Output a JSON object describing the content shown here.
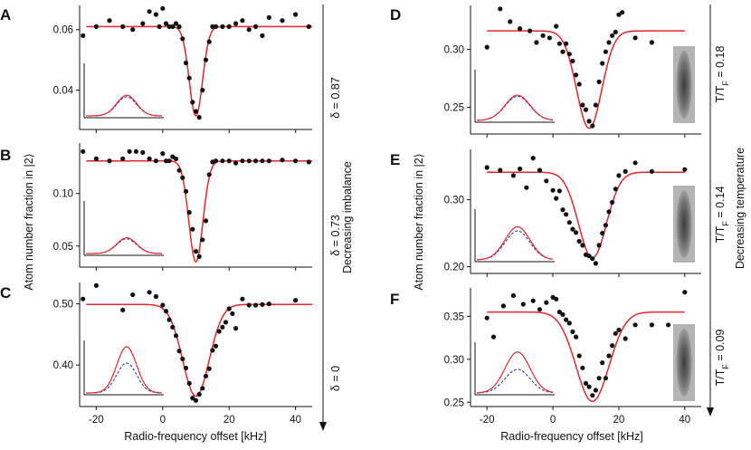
{
  "colors": {
    "fit": "#e8262a",
    "dots": "#111111",
    "inset_red": "#e8262a",
    "inset_blue": "#3a3aa0",
    "axis": "#111111"
  },
  "shared": {
    "xlabel": "Radio-frequency offset [kHz]",
    "ylabel": "Atom number fraction in |2⟩",
    "left_arrow_label": "Decreasing imbalance",
    "right_arrow_label": "Decreasing temperature"
  },
  "chart_data": [
    {
      "panel": "A",
      "type": "scatter",
      "side": "left",
      "annotation": "δ = 0.87",
      "xlim": [
        -25,
        45
      ],
      "ylim": [
        0.027,
        0.068
      ],
      "xticks": [
        -20,
        0,
        20,
        40
      ],
      "yticks": [
        0.04,
        0.06
      ],
      "ytick_labels": [
        "0.04",
        "0.06"
      ],
      "xtick_labels": [],
      "fit": {
        "baseline": 0.061,
        "depth": 0.0295,
        "center": 10,
        "sigma": 2.0
      },
      "inset": {
        "red_peak": 0.38,
        "blue_peak": 0.35
      },
      "points": [
        [
          -24,
          0.058
        ],
        [
          -20,
          0.061
        ],
        [
          -16,
          0.063
        ],
        [
          -12,
          0.061
        ],
        [
          -9,
          0.06
        ],
        [
          -6,
          0.062
        ],
        [
          -4,
          0.066
        ],
        [
          -2,
          0.065
        ],
        [
          -1,
          0.061
        ],
        [
          0,
          0.067
        ],
        [
          1,
          0.062
        ],
        [
          2,
          0.061
        ],
        [
          3,
          0.061
        ],
        [
          4,
          0.062
        ],
        [
          5,
          0.061
        ],
        [
          6,
          0.057
        ],
        [
          7,
          0.049
        ],
        [
          8,
          0.044
        ],
        [
          9,
          0.036
        ],
        [
          10,
          0.033
        ],
        [
          11,
          0.031
        ],
        [
          12,
          0.04
        ],
        [
          13,
          0.05
        ],
        [
          14,
          0.056
        ],
        [
          15,
          0.061
        ],
        [
          16,
          0.061
        ],
        [
          18,
          0.061
        ],
        [
          20,
          0.061
        ],
        [
          22,
          0.062
        ],
        [
          24,
          0.063
        ],
        [
          26,
          0.06
        ],
        [
          28,
          0.061
        ],
        [
          30,
          0.058
        ],
        [
          32,
          0.064
        ],
        [
          36,
          0.063
        ],
        [
          40,
          0.065
        ],
        [
          44,
          0.061
        ]
      ]
    },
    {
      "panel": "B",
      "type": "scatter",
      "side": "left",
      "annotation": "δ = 0.73",
      "xlim": [
        -25,
        45
      ],
      "ylim": [
        0.03,
        0.148
      ],
      "xticks": [
        -20,
        0,
        20,
        40
      ],
      "yticks": [
        0.05,
        0.1
      ],
      "ytick_labels": [
        "0.05",
        "0.10"
      ],
      "xtick_labels": [],
      "fit": {
        "baseline": 0.131,
        "depth": 0.096,
        "center": 10,
        "sigma": 2.1
      },
      "inset": {
        "red_peak": 0.29,
        "blue_peak": 0.27
      },
      "points": [
        [
          -24,
          0.14
        ],
        [
          -20,
          0.133
        ],
        [
          -16,
          0.131
        ],
        [
          -12,
          0.133
        ],
        [
          -10,
          0.14
        ],
        [
          -8,
          0.14
        ],
        [
          -6,
          0.139
        ],
        [
          -4,
          0.133
        ],
        [
          -2,
          0.131
        ],
        [
          0,
          0.138
        ],
        [
          1,
          0.131
        ],
        [
          2,
          0.131
        ],
        [
          3,
          0.135
        ],
        [
          4,
          0.133
        ],
        [
          5,
          0.122
        ],
        [
          6,
          0.115
        ],
        [
          7,
          0.102
        ],
        [
          8,
          0.082
        ],
        [
          9,
          0.066
        ],
        [
          10,
          0.045
        ],
        [
          11,
          0.04
        ],
        [
          12,
          0.056
        ],
        [
          13,
          0.074
        ],
        [
          14,
          0.118
        ],
        [
          15,
          0.13
        ],
        [
          16,
          0.131
        ],
        [
          18,
          0.131
        ],
        [
          20,
          0.131
        ],
        [
          22,
          0.129
        ],
        [
          24,
          0.131
        ],
        [
          26,
          0.131
        ],
        [
          28,
          0.131
        ],
        [
          30,
          0.131
        ],
        [
          32,
          0.131
        ],
        [
          36,
          0.132
        ],
        [
          40,
          0.131
        ],
        [
          44,
          0.13
        ]
      ]
    },
    {
      "panel": "C",
      "type": "scatter",
      "side": "left",
      "annotation": "δ = 0",
      "xlim": [
        -25,
        45
      ],
      "ylim": [
        0.332,
        0.535
      ],
      "xticks": [
        -20,
        0,
        20,
        40
      ],
      "yticks": [
        0.4,
        0.5
      ],
      "ytick_labels": [
        "0.40",
        "0.50"
      ],
      "xtick_labels": [
        "-20",
        "0",
        "20",
        "40"
      ],
      "fit": {
        "baseline": 0.499,
        "depth": 0.15,
        "center": 10,
        "sigma": 4.0
      },
      "inset": {
        "red_peak": 0.85,
        "blue_peak": 0.55
      },
      "points": [
        [
          -24,
          0.508
        ],
        [
          -20,
          0.53
        ],
        [
          -12,
          0.49
        ],
        [
          -9,
          0.515
        ],
        [
          -4,
          0.519
        ],
        [
          -2,
          0.512
        ],
        [
          0,
          0.498
        ],
        [
          1,
          0.488
        ],
        [
          2,
          0.474
        ],
        [
          3,
          0.462
        ],
        [
          4,
          0.448
        ],
        [
          5,
          0.423
        ],
        [
          6,
          0.41
        ],
        [
          7,
          0.395
        ],
        [
          8,
          0.37
        ],
        [
          9,
          0.346
        ],
        [
          10,
          0.342
        ],
        [
          11,
          0.352
        ],
        [
          12,
          0.362
        ],
        [
          13,
          0.382
        ],
        [
          14,
          0.394
        ],
        [
          15,
          0.424
        ],
        [
          16,
          0.431
        ],
        [
          17,
          0.455
        ],
        [
          18,
          0.462
        ],
        [
          19,
          0.47
        ],
        [
          20,
          0.492
        ],
        [
          21,
          0.484
        ],
        [
          22,
          0.46
        ],
        [
          24,
          0.508
        ],
        [
          26,
          0.498
        ],
        [
          28,
          0.498
        ],
        [
          30,
          0.499
        ],
        [
          32,
          0.5
        ],
        [
          40,
          0.506
        ]
      ]
    },
    {
      "panel": "D",
      "type": "scatter",
      "side": "right",
      "annotation": "T/T_F = 0.18",
      "annotation_main": "T/T",
      "annotation_sub": "F",
      "annotation_rest": " = 0.18",
      "xlim": [
        -25,
        45
      ],
      "ylim": [
        0.227,
        0.338
      ],
      "xticks": [
        -20,
        0,
        20,
        40
      ],
      "yticks": [
        0.25,
        0.3
      ],
      "ytick_labels": [
        "0.25",
        "0.30"
      ],
      "xtick_labels": [],
      "fit": {
        "baseline": 0.316,
        "depth": 0.084,
        "center": 11,
        "sigma": 3.8
      },
      "inset": {
        "red_peak": 0.48,
        "blue_peak": 0.46
      },
      "points": [
        [
          -20,
          0.302
        ],
        [
          -16,
          0.335
        ],
        [
          -13,
          0.324
        ],
        [
          -10,
          0.318
        ],
        [
          -7,
          0.316
        ],
        [
          -5,
          0.306
        ],
        [
          -3,
          0.312
        ],
        [
          -1,
          0.31
        ],
        [
          1,
          0.32
        ],
        [
          2,
          0.305
        ],
        [
          3,
          0.298
        ],
        [
          4,
          0.305
        ],
        [
          5,
          0.296
        ],
        [
          6,
          0.29
        ],
        [
          7,
          0.278
        ],
        [
          8,
          0.27
        ],
        [
          9,
          0.252
        ],
        [
          10,
          0.248
        ],
        [
          11,
          0.238
        ],
        [
          12,
          0.234
        ],
        [
          13,
          0.252
        ],
        [
          14,
          0.272
        ],
        [
          15,
          0.288
        ],
        [
          16,
          0.298
        ],
        [
          17,
          0.306
        ],
        [
          18,
          0.312
        ],
        [
          19,
          0.315
        ],
        [
          20,
          0.33
        ],
        [
          21,
          0.332
        ],
        [
          25,
          0.31
        ],
        [
          30,
          0.306
        ],
        [
          40,
          0.3
        ]
      ]
    },
    {
      "panel": "E",
      "type": "scatter",
      "side": "right",
      "annotation": "T/T_F = 0.14",
      "annotation_main": "T/T",
      "annotation_sub": "F",
      "annotation_rest": " = 0.14",
      "xlim": [
        -25,
        45
      ],
      "ylim": [
        0.19,
        0.375
      ],
      "xticks": [
        -20,
        0,
        20,
        40
      ],
      "yticks": [
        0.2,
        0.3
      ],
      "ytick_labels": [
        "0.20",
        "0.30"
      ],
      "xtick_labels": [],
      "fit": {
        "baseline": 0.341,
        "depth": 0.128,
        "center": 12,
        "sigma": 4.2
      },
      "inset": {
        "red_peak": 0.63,
        "blue_peak": 0.55
      },
      "points": [
        [
          -20,
          0.348
        ],
        [
          -16,
          0.344
        ],
        [
          -12,
          0.336
        ],
        [
          -10,
          0.346
        ],
        [
          -8,
          0.318
        ],
        [
          -6,
          0.362
        ],
        [
          -4,
          0.344
        ],
        [
          -2,
          0.328
        ],
        [
          0,
          0.314
        ],
        [
          1,
          0.302
        ],
        [
          2,
          0.313
        ],
        [
          3,
          0.285
        ],
        [
          4,
          0.278
        ],
        [
          5,
          0.266
        ],
        [
          6,
          0.256
        ],
        [
          7,
          0.251
        ],
        [
          8,
          0.238
        ],
        [
          9,
          0.232
        ],
        [
          10,
          0.218
        ],
        [
          11,
          0.216
        ],
        [
          12,
          0.212
        ],
        [
          13,
          0.205
        ],
        [
          14,
          0.232
        ],
        [
          15,
          0.25
        ],
        [
          16,
          0.262
        ],
        [
          17,
          0.282
        ],
        [
          18,
          0.296
        ],
        [
          19,
          0.316
        ],
        [
          20,
          0.336
        ],
        [
          22,
          0.342
        ],
        [
          25,
          0.355
        ],
        [
          30,
          0.342
        ],
        [
          40,
          0.345
        ]
      ]
    },
    {
      "panel": "F",
      "type": "scatter",
      "side": "right",
      "annotation": "T/T_F = 0.09",
      "annotation_main": "T/T",
      "annotation_sub": "F",
      "annotation_rest": " = 0.09",
      "xlim": [
        -25,
        45
      ],
      "ylim": [
        0.245,
        0.383
      ],
      "xticks": [
        -20,
        0,
        20,
        40
      ],
      "yticks": [
        0.25,
        0.3,
        0.35
      ],
      "ytick_labels": [
        "0.25",
        "0.30",
        "0.35"
      ],
      "xtick_labels": [
        "-20",
        "0",
        "20",
        "40"
      ],
      "fit": {
        "baseline": 0.355,
        "depth": 0.104,
        "center": 12,
        "sigma": 5.0
      },
      "inset": {
        "red_peak": 0.78,
        "blue_peak": 0.45
      },
      "points": [
        [
          -20,
          0.348
        ],
        [
          -18,
          0.326
        ],
        [
          -15,
          0.362
        ],
        [
          -12,
          0.374
        ],
        [
          -9,
          0.364
        ],
        [
          -6,
          0.368
        ],
        [
          -4,
          0.358
        ],
        [
          -2,
          0.366
        ],
        [
          0,
          0.372
        ],
        [
          1,
          0.37
        ],
        [
          2,
          0.355
        ],
        [
          3,
          0.352
        ],
        [
          4,
          0.346
        ],
        [
          5,
          0.342
        ],
        [
          6,
          0.332
        ],
        [
          7,
          0.326
        ],
        [
          8,
          0.304
        ],
        [
          9,
          0.29
        ],
        [
          10,
          0.272
        ],
        [
          11,
          0.268
        ],
        [
          12,
          0.258
        ],
        [
          13,
          0.264
        ],
        [
          14,
          0.278
        ],
        [
          15,
          0.296
        ],
        [
          16,
          0.278
        ],
        [
          17,
          0.304
        ],
        [
          18,
          0.316
        ],
        [
          19,
          0.33
        ],
        [
          20,
          0.334
        ],
        [
          22,
          0.324
        ],
        [
          25,
          0.34
        ],
        [
          30,
          0.34
        ],
        [
          35,
          0.34
        ],
        [
          40,
          0.378
        ]
      ]
    }
  ]
}
